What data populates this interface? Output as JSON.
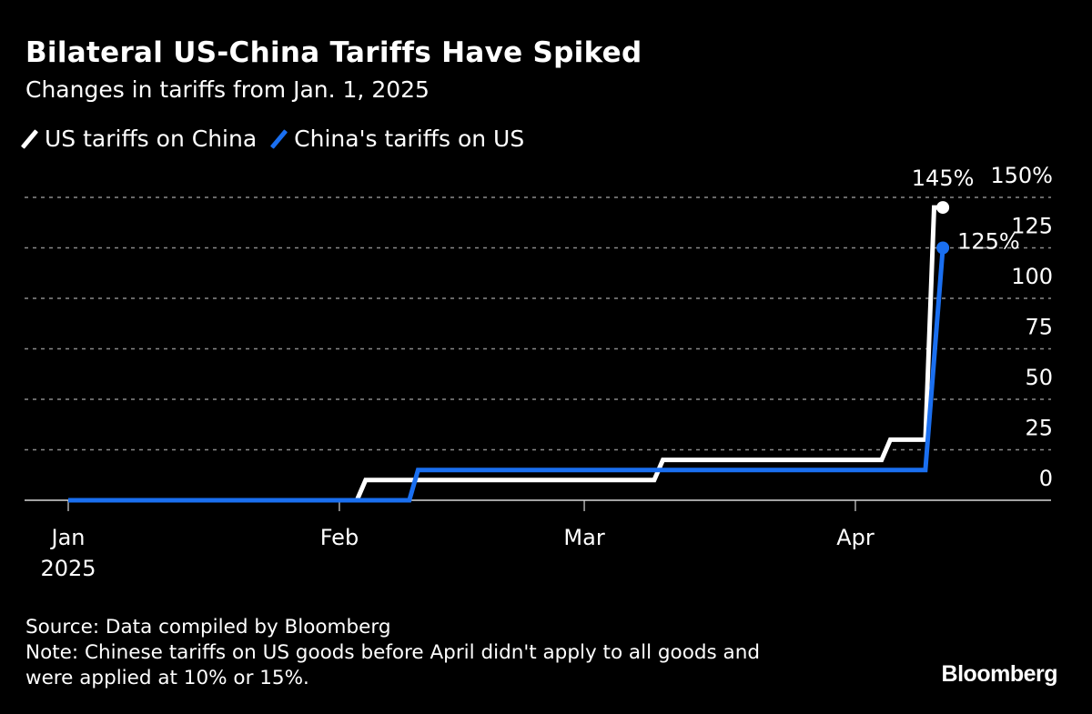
{
  "title": "Bilateral US-China Tariffs Have Spiked",
  "subtitle": "Changes in tariffs from Jan. 1, 2025",
  "source": "Source: Data compiled by Bloomberg",
  "note_line1": "Note: Chinese tariffs on US goods before April didn't apply to all goods and",
  "note_line2": "were applied at 10% or 15%.",
  "logo": "Bloomberg",
  "chart_data": {
    "type": "line",
    "title": "Bilateral US-China Tariffs Have Spiked",
    "subtitle": "Changes in tariffs from Jan. 1, 2025",
    "xlabel": "",
    "ylabel": "",
    "xlim": [
      "2025-01-01",
      "2025-04-30"
    ],
    "ylim": [
      0,
      150
    ],
    "grid": true,
    "legend_position": "top-left",
    "x_ticks": [
      {
        "date": "2025-01-01",
        "label": "Jan",
        "sublabel": "2025"
      },
      {
        "date": "2025-02-01",
        "label": "Feb"
      },
      {
        "date": "2025-03-01",
        "label": "Mar"
      },
      {
        "date": "2025-04-01",
        "label": "Apr"
      }
    ],
    "y_ticks": [
      {
        "value": 0,
        "label": "0"
      },
      {
        "value": 25,
        "label": "25"
      },
      {
        "value": 50,
        "label": "50"
      },
      {
        "value": 75,
        "label": "75"
      },
      {
        "value": 100,
        "label": "100"
      },
      {
        "value": 125,
        "label": "125"
      },
      {
        "value": 150,
        "label": "150%"
      }
    ],
    "series": [
      {
        "name": "US tariffs on China",
        "color": "#ffffff",
        "end_label": "145%",
        "points": [
          [
            "2025-01-01",
            0
          ],
          [
            "2025-02-03",
            0
          ],
          [
            "2025-02-04",
            10
          ],
          [
            "2025-03-09",
            10
          ],
          [
            "2025-03-10",
            20
          ],
          [
            "2025-04-04",
            20
          ],
          [
            "2025-04-05",
            30
          ],
          [
            "2025-04-09",
            30
          ],
          [
            "2025-04-10",
            145
          ],
          [
            "2025-04-11",
            145
          ]
        ]
      },
      {
        "name": "China's tariffs on US",
        "color": "#1a6ff0",
        "end_label": "125%",
        "points": [
          [
            "2025-01-01",
            0
          ],
          [
            "2025-02-09",
            0
          ],
          [
            "2025-02-10",
            15
          ],
          [
            "2025-04-09",
            15
          ],
          [
            "2025-04-11",
            125
          ]
        ]
      }
    ]
  }
}
